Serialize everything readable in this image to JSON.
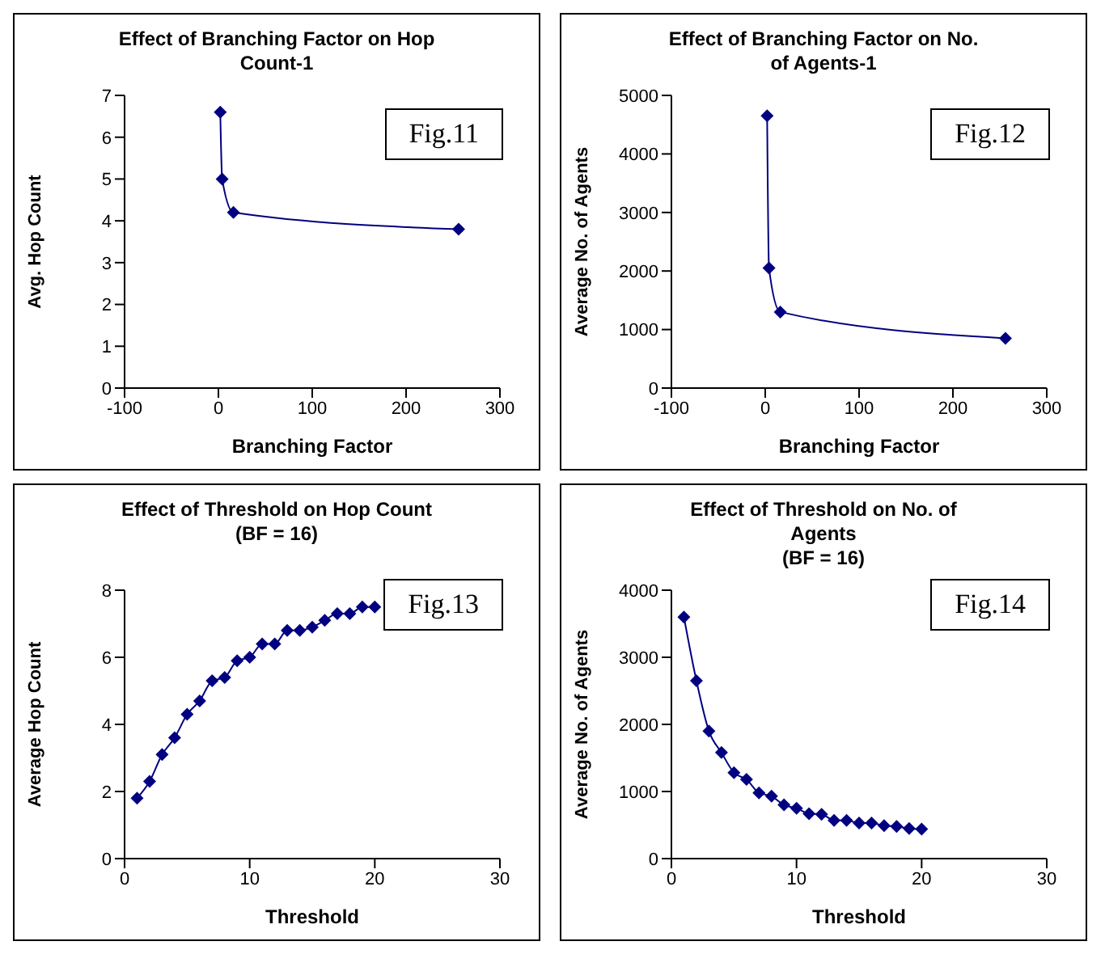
{
  "chart_data": [
    {
      "type": "line",
      "title": "Effect of Branching Factor on Hop Count-1",
      "xlabel": "Branching Factor",
      "ylabel": "Avg. Hop Count",
      "x": [
        2,
        4,
        16,
        256
      ],
      "series": [
        {
          "color": "#000080",
          "values": [
            6.6,
            5.0,
            4.2,
            3.8
          ]
        }
      ],
      "xlim": [
        -100,
        300
      ],
      "xticks": [
        -100,
        0,
        100,
        200,
        300
      ],
      "ylim": [
        0,
        7
      ],
      "yticks": [
        0,
        1,
        2,
        3,
        4,
        5,
        6,
        7
      ],
      "marker": "diamond",
      "grid": false,
      "legend": false,
      "annotations": [
        "Fig.11"
      ]
    },
    {
      "type": "line",
      "title": "Effect of Branching Factor on No. of Agents-1",
      "xlabel": "Branching Factor",
      "ylabel": "Average No. of Agents",
      "x": [
        2,
        4,
        16,
        256
      ],
      "series": [
        {
          "color": "#000080",
          "values": [
            4650,
            2050,
            1300,
            850
          ]
        }
      ],
      "xlim": [
        -100,
        300
      ],
      "xticks": [
        -100,
        0,
        100,
        200,
        300
      ],
      "ylim": [
        0,
        5000
      ],
      "yticks": [
        0,
        1000,
        2000,
        3000,
        4000,
        5000
      ],
      "marker": "diamond",
      "grid": false,
      "legend": false,
      "annotations": [
        "Fig.12"
      ]
    },
    {
      "type": "line",
      "title": "Effect of Threshold on Hop Count",
      "subtitle": "(BF = 16)",
      "xlabel": "Threshold",
      "ylabel": "Average Hop Count",
      "x": [
        1,
        2,
        3,
        4,
        5,
        6,
        7,
        8,
        9,
        10,
        11,
        12,
        13,
        14,
        15,
        16,
        17,
        18,
        19,
        20
      ],
      "series": [
        {
          "color": "#000080",
          "values": [
            1.8,
            2.3,
            3.1,
            3.6,
            4.3,
            4.7,
            5.3,
            5.4,
            5.9,
            6.0,
            6.4,
            6.4,
            6.8,
            6.8,
            6.9,
            7.1,
            7.3,
            7.3,
            7.5,
            7.5
          ]
        }
      ],
      "xlim": [
        0,
        30
      ],
      "xticks": [
        0,
        10,
        20,
        30
      ],
      "ylim": [
        0,
        8
      ],
      "yticks": [
        0,
        2,
        4,
        6,
        8
      ],
      "marker": "diamond",
      "grid": false,
      "legend": false,
      "annotations": [
        "Fig.13"
      ]
    },
    {
      "type": "line",
      "title": "Effect of Threshold on No. of Agents",
      "subtitle": "(BF = 16)",
      "xlabel": "Threshold",
      "ylabel": "Average No. of Agents",
      "x": [
        1,
        2,
        3,
        4,
        5,
        6,
        7,
        8,
        9,
        10,
        11,
        12,
        13,
        14,
        15,
        16,
        17,
        18,
        19,
        20
      ],
      "series": [
        {
          "color": "#000080",
          "values": [
            3600,
            2650,
            1900,
            1580,
            1280,
            1180,
            980,
            930,
            800,
            750,
            670,
            660,
            570,
            570,
            530,
            530,
            490,
            480,
            450,
            440
          ]
        }
      ],
      "xlim": [
        0,
        30
      ],
      "xticks": [
        0,
        10,
        20,
        30
      ],
      "ylim": [
        0,
        4000
      ],
      "yticks": [
        0,
        1000,
        2000,
        3000,
        4000
      ],
      "marker": "diamond",
      "grid": false,
      "legend": false,
      "annotations": [
        "Fig.14"
      ]
    }
  ]
}
